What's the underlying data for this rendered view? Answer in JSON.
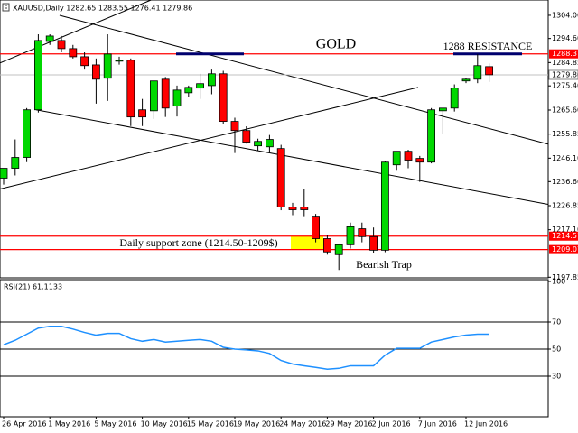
{
  "chart_data": [
    {
      "type": "candlestick",
      "symbol_info": "XAUUSD,Daily 1282.65 1283.55 1276.41 1279.86",
      "categories": [
        "26 Apr 2016",
        null,
        null,
        null,
        "1 May 2016",
        null,
        null,
        null,
        "5 May 2016",
        null,
        null,
        null,
        "10 May 2016",
        null,
        null,
        null,
        "15 May 2016",
        null,
        null,
        null,
        "19 May 2016",
        null,
        null,
        null,
        "24 May 2016",
        null,
        null,
        null,
        "29 May 2016",
        null,
        null,
        null,
        "2 Jun 2016",
        null,
        null,
        null,
        "7 Jun 2016",
        null,
        null,
        null,
        "12 Jun 2016",
        null,
        null
      ],
      "open": [
        1238.0,
        1242.0,
        1246.4,
        1265.7,
        1293.4,
        1293.8,
        1290.5,
        1287.2,
        1283.9,
        1278.5,
        1285.4,
        1285.8,
        1265.7,
        1265.3,
        1278.1,
        1267.2,
        1272.6,
        1274.5,
        1275.5,
        1280.3,
        1261.0,
        1257.3,
        1251.1,
        1250.7,
        1250.0,
        1226.3,
        1226.3,
        1222.6,
        1213.5,
        1207.0,
        1211.0,
        1217.5,
        1214.3,
        1208.8,
        1243.4,
        1248.9,
        1246.0,
        1244.5,
        1265.3,
        1266.4,
        1277.4,
        1278.1,
        1283.2
      ],
      "high": [
        1242.0,
        1253.7,
        1266.4,
        1296.3,
        1296.3,
        1295.6,
        1292.0,
        1289.0,
        1286.5,
        1296.3,
        1287.2,
        1286.5,
        1270.1,
        1276.3,
        1279.0,
        1275.5,
        1275.5,
        1280.3,
        1282.0,
        1281.5,
        1262.5,
        1259.0,
        1254.0,
        1255.5,
        1251.5,
        1228.0,
        1233.6,
        1223.5,
        1215.0,
        1211.5,
        1220.0,
        1220.0,
        1218.0,
        1245.0,
        1248.9,
        1249.5,
        1247.0,
        1266.4,
        1266.4,
        1276.0,
        1278.5,
        1288.3,
        1284.5
      ],
      "low": [
        1235.4,
        1239.1,
        1244.5,
        1264.6,
        1292.0,
        1289.0,
        1286.5,
        1282.0,
        1268.2,
        1269.3,
        1284.0,
        1259.1,
        1259.1,
        1262.0,
        1262.8,
        1263.0,
        1271.0,
        1270.1,
        1272.0,
        1260.0,
        1248.2,
        1252.0,
        1249.0,
        1248.5,
        1225.0,
        1223.0,
        1222.6,
        1212.0,
        1207.0,
        1200.8,
        1209.5,
        1212.0,
        1207.5,
        1208.0,
        1241.0,
        1242.0,
        1236.5,
        1244.0,
        1256.0,
        1265.0,
        1276.5,
        1276.5,
        1277.0
      ],
      "close": [
        1242.0,
        1246.4,
        1265.7,
        1293.8,
        1295.6,
        1290.5,
        1287.2,
        1283.6,
        1278.1,
        1288.3,
        1285.8,
        1262.8,
        1262.8,
        1277.4,
        1266.4,
        1273.7,
        1274.8,
        1276.3,
        1280.3,
        1261.0,
        1257.3,
        1252.6,
        1252.9,
        1253.7,
        1226.3,
        1225.2,
        1225.2,
        1213.5,
        1208.1,
        1211.0,
        1218.3,
        1214.3,
        1208.8,
        1244.5,
        1248.9,
        1245.3,
        1244.5,
        1265.7,
        1266.4,
        1274.5,
        1278.1,
        1283.6,
        1279.9
      ],
      "up_color": "#00d800",
      "down_color": "#ff0000",
      "ylim": [
        1197.6,
        1310.2
      ],
      "yticks": [
        {
          "value": 1304,
          "label": "1304.00"
        },
        {
          "value": 1294.6,
          "label": "1294.60"
        },
        1284.85,
        {
          "value": 1275.4,
          "label": "1275.40"
        },
        {
          "value": 1265.6,
          "label": "1265.60"
        },
        1255.85,
        {
          "value": 1246.1,
          "label": "1246.10"
        },
        {
          "value": 1236.6,
          "label": "1236.60"
        },
        1226.85,
        {
          "value": 1217.1,
          "label": "1217.10"
        },
        1197.85
      ],
      "hlines": [
        1288.37,
        1214.51,
        1209.07
      ],
      "hline_color": "#ff0000",
      "current_price": 1279.86,
      "trendlines": [
        {
          "x": [
            4.84,
            47.1
          ],
          "y": [
            1304.0,
            1251.8
          ]
        },
        {
          "x": [
            2.81,
            47.1
          ],
          "y": [
            1265.7,
            1227.4
          ]
        },
        {
          "x": [
            -0.31,
            35.86
          ],
          "y": [
            1233.6,
            1274.8
          ]
        },
        {
          "x": [
            -0.31,
            12.8
          ],
          "y": [
            1284.7,
            1310.3
          ]
        }
      ],
      "annotations": [
        "GOLD",
        "1288 RESISTANCE",
        "Daily support zone (1214.50-1209$)",
        "Bearish Trap"
      ]
    },
    {
      "type": "line",
      "title": "RSI(21) 61.1133",
      "values": [
        53.2,
        56.5,
        61.0,
        65.5,
        66.8,
        66.8,
        64.8,
        62.3,
        60.3,
        61.6,
        61.6,
        57.7,
        55.8,
        57.1,
        55.2,
        55.8,
        56.5,
        57.1,
        55.8,
        51.3,
        50.0,
        49.4,
        48.7,
        46.8,
        41.6,
        39.0,
        37.7,
        36.5,
        35.2,
        35.8,
        37.7,
        37.7,
        37.7,
        45.5,
        50.6,
        50.6,
        50.6,
        55.2,
        57.1,
        59.0,
        60.3,
        61.0,
        61.0
      ],
      "color": "#1e90ff",
      "ylim": [
        0,
        100
      ],
      "yticks": [
        100,
        70,
        50,
        30
      ],
      "levels": [
        70,
        50,
        30
      ]
    }
  ]
}
